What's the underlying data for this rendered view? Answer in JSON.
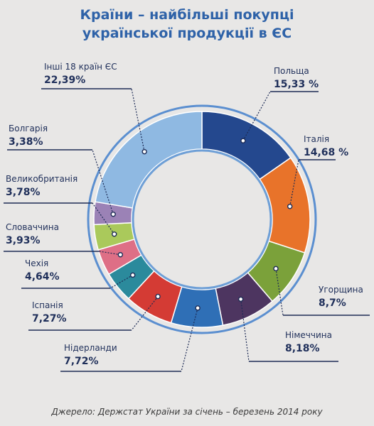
{
  "title_line1": "Країни – найбільші покупці",
  "title_line2": "української продукції в ЄС",
  "source": "Джерело: Держстат України за січень – березень 2014 року",
  "chart_data": {
    "type": "pie",
    "title": "Країни – найбільші покупці української продукції в ЄС",
    "unit": "%",
    "slices": [
      {
        "label": "Польща",
        "value": 15.33,
        "display": "15,33 %",
        "color": "#24488e"
      },
      {
        "label": "Італія",
        "value": 14.68,
        "display": "14,68 %",
        "color": "#e8732a"
      },
      {
        "label": "Угорщина",
        "value": 8.7,
        "display": "8,7%",
        "color": "#7ba13a"
      },
      {
        "label": "Німеччина",
        "value": 8.18,
        "display": "8,18%",
        "color": "#4d3560"
      },
      {
        "label": "Нідерланди",
        "value": 7.72,
        "display": "7,72%",
        "color": "#2f6fb6"
      },
      {
        "label": "Іспанія",
        "value": 7.27,
        "display": "7,27%",
        "color": "#d43b34"
      },
      {
        "label": "Чехія",
        "value": 4.64,
        "display": "4,64%",
        "color": "#2b8a9c"
      },
      {
        "label": "Словаччина",
        "value": 3.93,
        "display": "3,93%",
        "color": "#de6f86"
      },
      {
        "label": "Великобританія",
        "value": 3.78,
        "display": "3,78%",
        "color": "#aac95b"
      },
      {
        "label": "Болгарія",
        "value": 3.38,
        "display": "3,38%",
        "color": "#9b82b6"
      },
      {
        "label": "Інші 18 країн ЄС",
        "value": 22.39,
        "display": "22,39%",
        "color": "#8fb9e2"
      }
    ]
  }
}
